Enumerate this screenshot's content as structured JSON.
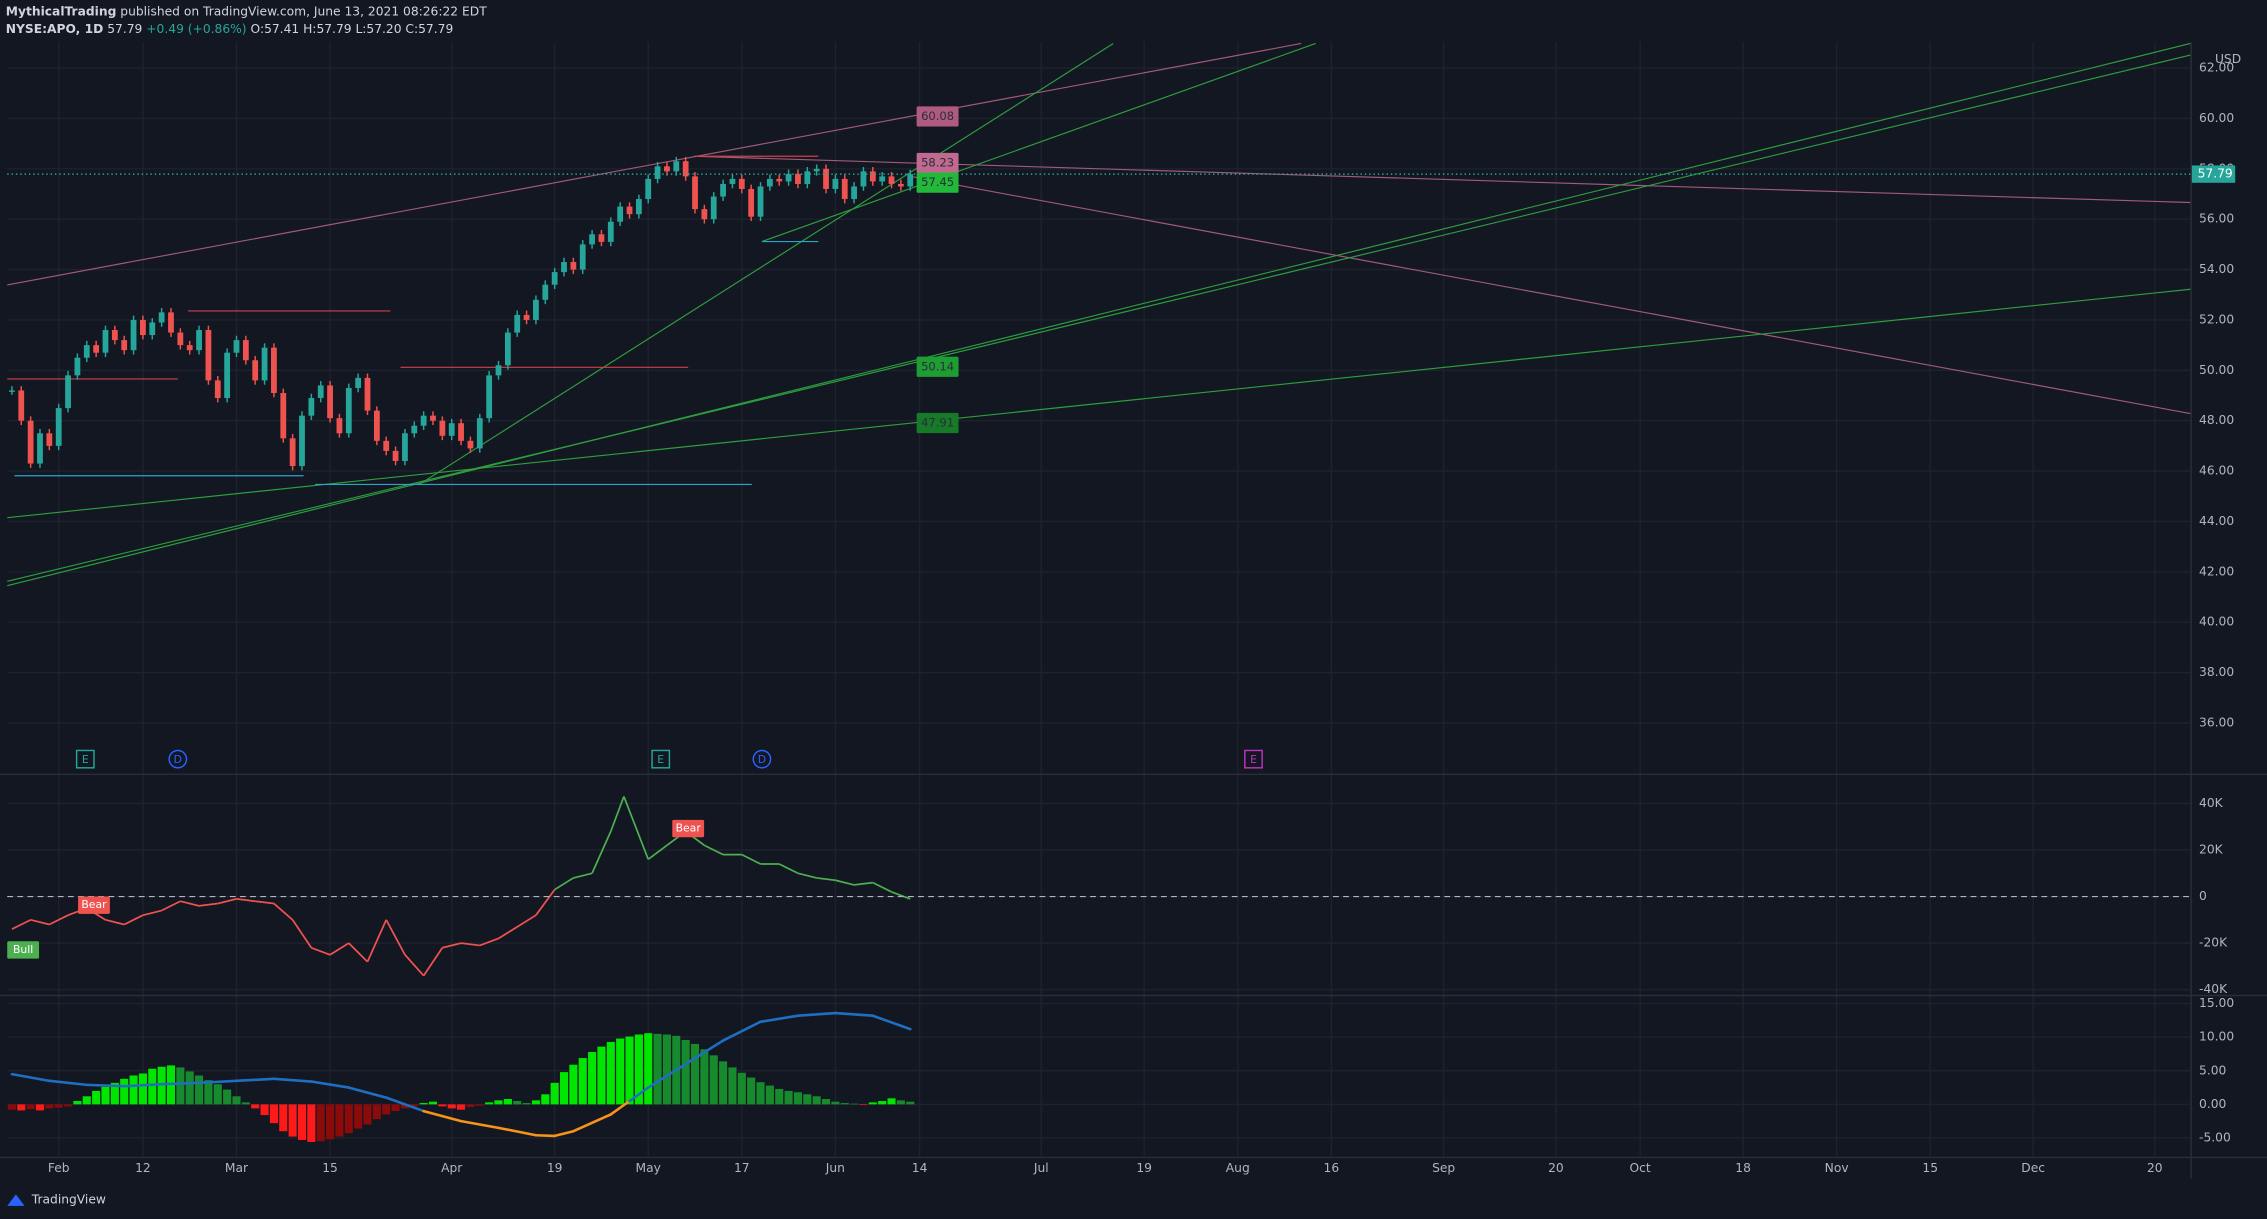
{
  "header": {
    "publisher": "MythicalTrading",
    "published": "published on TradingView.com, June 13, 2021 08:26:22 EDT",
    "symbol": "NYSE:APO, 1D",
    "price": "57.79",
    "change": "+0.49 (+0.86%)",
    "ohlc": "O:57.41 H:57.79 L:57.20 C:57.79"
  },
  "footer": "TradingView",
  "chart_data": [
    {
      "type": "candlestick",
      "currency": "USD",
      "up_color": "#26a69a",
      "down_color": "#ef5350",
      "ylim": [
        34,
        63
      ],
      "yticks": [
        {
          "value": 36,
          "label": "36.00"
        },
        {
          "value": 38,
          "label": "38.00"
        },
        {
          "value": 40,
          "label": "40.00"
        },
        {
          "value": 42,
          "label": "42.00"
        },
        {
          "value": 44,
          "label": "44.00"
        },
        {
          "value": 46,
          "label": "46.00"
        },
        {
          "value": 48,
          "label": "48.00"
        },
        {
          "value": 50,
          "label": "50.00"
        },
        {
          "value": 52,
          "label": "52.00"
        },
        {
          "value": 54,
          "label": "54.00"
        },
        {
          "value": 56,
          "label": "56.00"
        },
        {
          "value": 58,
          "label": "58.00"
        },
        {
          "value": 60,
          "label": "60.00"
        },
        {
          "value": 62,
          "label": "62.00"
        }
      ],
      "xlim": [
        -0.5,
        232.8
      ],
      "xticks": [
        {
          "value": 5,
          "label": "Feb"
        },
        {
          "value": 14,
          "label": "12"
        },
        {
          "value": 24,
          "label": "Mar"
        },
        {
          "value": 34,
          "label": "15"
        },
        {
          "value": 47,
          "label": "Apr"
        },
        {
          "value": 58,
          "label": "19"
        },
        {
          "value": 68,
          "label": "May"
        },
        {
          "value": 78,
          "label": "17"
        },
        {
          "value": 88,
          "label": "Jun"
        },
        {
          "value": 97,
          "label": "14"
        },
        {
          "value": 110,
          "label": "Jul"
        },
        {
          "value": 121,
          "label": "19"
        },
        {
          "value": 131,
          "label": "Aug"
        },
        {
          "value": 141,
          "label": "16"
        },
        {
          "value": 153,
          "label": "Sep"
        },
        {
          "value": 165,
          "label": "20"
        },
        {
          "value": 174,
          "label": "Oct"
        },
        {
          "value": 185,
          "label": "18"
        },
        {
          "value": 195,
          "label": "Nov"
        },
        {
          "value": 205,
          "label": "15"
        },
        {
          "value": 216,
          "label": "Dec"
        },
        {
          "value": 229,
          "label": "20"
        }
      ],
      "grid": true,
      "values": [
        49.2,
        48.0,
        46.3,
        47.5,
        47.0,
        48.5,
        49.8,
        50.5,
        51.0,
        50.7,
        51.6,
        51.2,
        50.8,
        52.0,
        51.4,
        51.9,
        52.3,
        51.5,
        51.0,
        50.8,
        51.6,
        49.6,
        48.9,
        50.7,
        51.2,
        50.4,
        49.6,
        50.9,
        49.1,
        47.3,
        46.2,
        48.2,
        48.9,
        49.4,
        48.1,
        47.5,
        49.3,
        49.7,
        48.4,
        47.2,
        46.8,
        46.4,
        47.5,
        47.8,
        48.2,
        48.0,
        47.4,
        47.9,
        47.2,
        46.9,
        48.1,
        49.8,
        50.2,
        51.5,
        52.2,
        52.0,
        52.8,
        53.4,
        53.9,
        54.3,
        54.0,
        55.0,
        55.4,
        55.1,
        55.9,
        56.5,
        56.2,
        56.8,
        57.6,
        58.1,
        57.9,
        58.3,
        57.7,
        56.4,
        56.0,
        56.9,
        57.4,
        57.6,
        57.2,
        56.1,
        57.3,
        57.6,
        57.5,
        57.8,
        57.4,
        57.9,
        58.0,
        57.2,
        57.6,
        56.8,
        57.3,
        57.9,
        57.5,
        57.7,
        57.4,
        57.3,
        57.79
      ],
      "last_price": 57.79,
      "price_labels": [
        {
          "value": 60.08,
          "color": "#b05a80"
        },
        {
          "value": 58.23,
          "color": "#c06a90"
        },
        {
          "value": 57.45,
          "color": "#22b83a"
        },
        {
          "value": 50.14,
          "color": "#1e9e32"
        },
        {
          "value": 47.91,
          "color": "#177a28"
        }
      ],
      "events": [
        "E",
        "D",
        "E",
        "D",
        "E"
      ]
    },
    {
      "type": "line",
      "up_color": "#4caf50",
      "down_color": "#ef5350",
      "ylim": [
        -42200,
        52200
      ],
      "yticks": [
        {
          "value": 40000,
          "label": "40K"
        },
        {
          "value": 20000,
          "label": "20K"
        },
        0,
        {
          "value": -20000,
          "label": "-20K"
        },
        {
          "value": -40000,
          "label": "-40K"
        }
      ],
      "x": [
        0,
        2,
        4,
        6,
        8,
        10,
        12,
        14,
        16,
        18,
        20,
        22,
        24,
        26,
        28,
        30,
        32,
        34,
        36,
        38,
        40,
        42,
        44,
        46,
        48,
        50,
        52,
        54,
        56,
        58,
        60,
        62,
        64,
        65.4,
        68,
        70,
        72,
        74,
        76,
        78,
        80,
        82,
        84,
        86,
        88,
        90,
        92,
        94,
        96
      ],
      "values": [
        -14000,
        -10000,
        -12000,
        -8000,
        -5000,
        -10000,
        -12000,
        -8000,
        -6000,
        -2000,
        -4000,
        -3000,
        -1000,
        -2000,
        -3000,
        -10000,
        -22000,
        -25000,
        -20000,
        -28000,
        -10000,
        -25000,
        -34000,
        -22000,
        -20000,
        -21000,
        -18000,
        -13000,
        -8000,
        3000,
        8000,
        10000,
        28000,
        43000,
        16000,
        22000,
        28000,
        22000,
        18000,
        18000,
        14000,
        14000,
        10000,
        8000,
        7000,
        5000,
        6000,
        2000,
        -1000
      ],
      "annotations": [
        "Bear",
        "Bear",
        "Bull"
      ]
    },
    {
      "type": "bar",
      "colors": {
        "up_rising": "#00e600",
        "up_falling": "#168a2c",
        "down_falling": "#ff1a1a",
        "down_rising": "#8b0a0a"
      },
      "ylim": [
        -7.8,
        16.1
      ],
      "yticks": [
        {
          "value": 15,
          "label": "15.00"
        },
        {
          "value": 10,
          "label": "10.00"
        },
        {
          "value": 5,
          "label": "5.00"
        },
        {
          "value": 0,
          "label": "0.00"
        },
        {
          "value": -5,
          "label": "-5.00"
        }
      ],
      "values": [
        -0.8,
        -0.9,
        -0.7,
        -0.9,
        -0.6,
        -0.5,
        -0.3,
        0.5,
        1.2,
        2.0,
        2.6,
        3.2,
        3.8,
        4.3,
        4.6,
        5.3,
        5.6,
        5.8,
        5.5,
        4.9,
        4.3,
        3.6,
        3.0,
        2.2,
        1.2,
        0.3,
        -0.6,
        -1.6,
        -2.8,
        -4.0,
        -4.8,
        -5.3,
        -5.6,
        -5.5,
        -5.2,
        -4.8,
        -4.3,
        -3.6,
        -3.0,
        -2.2,
        -1.5,
        -1.0,
        -0.6,
        -0.3,
        0.2,
        0.4,
        -0.3,
        -0.6,
        -0.8,
        -0.4,
        -0.2,
        0.3,
        0.6,
        0.8,
        0.5,
        0.2,
        0.6,
        1.5,
        3.2,
        4.8,
        5.9,
        6.9,
        7.8,
        8.6,
        9.3,
        9.8,
        10.1,
        10.4,
        10.6,
        10.5,
        10.4,
        10.2,
        9.6,
        9.0,
        8.2,
        7.3,
        6.4,
        5.5,
        4.7,
        4.0,
        3.3,
        2.8,
        2.3,
        2.0,
        1.8,
        1.5,
        1.2,
        0.8,
        0.4,
        0.2,
        0.1,
        -0.1,
        0.3,
        0.5,
        0.9,
        0.6,
        0.4
      ],
      "line": {
        "up_color": "#1e6fc2",
        "down_color": "#f7931a",
        "x": [
          0,
          4,
          8,
          12,
          16,
          20,
          24,
          28,
          32,
          36,
          40,
          44,
          48,
          52,
          56,
          58,
          60,
          64,
          66,
          68,
          72,
          76,
          80,
          84,
          88,
          92,
          96
        ],
        "values": [
          4.5,
          3.5,
          2.9,
          2.7,
          3.0,
          3.2,
          3.5,
          3.8,
          3.4,
          2.5,
          1.0,
          -1.0,
          -2.5,
          -3.5,
          -4.6,
          -4.7,
          -4.0,
          -1.5,
          0.5,
          2.5,
          6,
          9.5,
          12.3,
          13.2,
          13.6,
          13.2,
          11.2
        ]
      }
    }
  ]
}
